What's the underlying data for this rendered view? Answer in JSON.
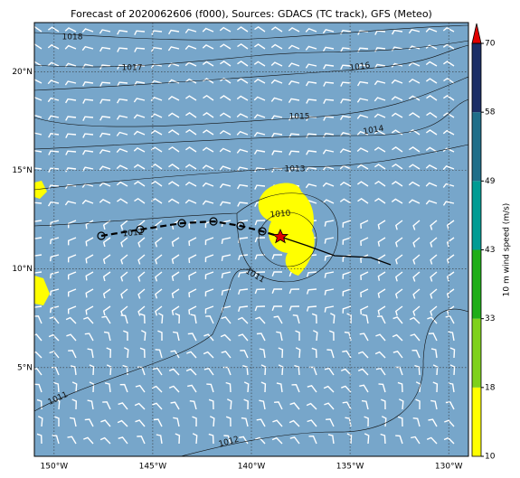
{
  "chart_data": {
    "type": "map",
    "title": "Forecast of 2020062606 (f000), Sources: GDACS (TC track), GFS (Meteo)",
    "xlim": [
      -151,
      -129
    ],
    "ylim": [
      0.5,
      22.5
    ],
    "xticks": [
      {
        "value": -150,
        "label": "150°W"
      },
      {
        "value": -145,
        "label": "145°W"
      },
      {
        "value": -140,
        "label": "140°W"
      },
      {
        "value": -135,
        "label": "135°W"
      },
      {
        "value": -130,
        "label": "130°W"
      }
    ],
    "yticks": [
      {
        "value": 5,
        "label": "5°N"
      },
      {
        "value": 10,
        "label": "10°N"
      },
      {
        "value": 15,
        "label": "15°N"
      },
      {
        "value": 20,
        "label": "20°N"
      }
    ],
    "grid": true,
    "contour_labels": [
      "1018",
      "1017",
      "1016",
      "1015",
      "1014",
      "1013",
      "1010",
      "1012",
      "1011",
      "1011",
      "1012"
    ],
    "colorbar": {
      "label": "10 m wind speed (m/s)",
      "ticks": [
        10,
        18,
        33,
        43,
        49,
        58,
        70
      ],
      "colors": [
        "#ffff00",
        "#7fd11b",
        "#1fae17",
        "#009c94",
        "#1f6f8a",
        "#1c2e66"
      ],
      "extend_color": "#e00000"
    }
  }
}
